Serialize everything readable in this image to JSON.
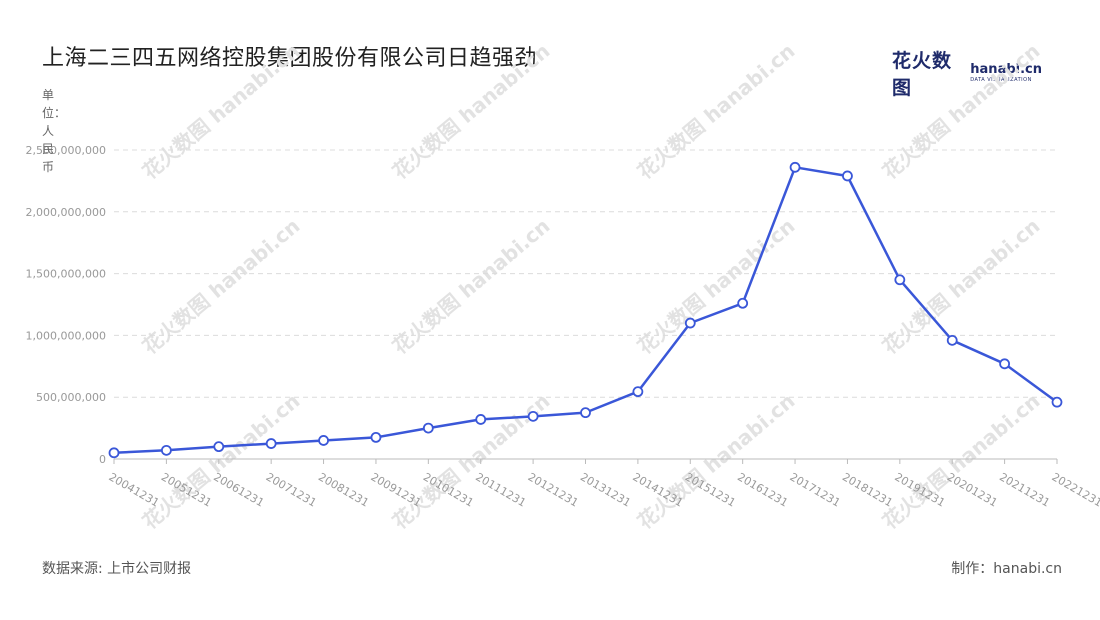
{
  "title": "上海二三四五网络控股集团股份有限公司日趋强劲",
  "logo": {
    "cn": "花火数图",
    "en": "hanabi.cn",
    "tagline": "DATA VISUALIZATION"
  },
  "footer": {
    "source": "数据来源: 上市公司财报",
    "credit": "制作：hanabi.cn"
  },
  "chart_data": {
    "type": "line",
    "title": "上海二三四五网络控股集团股份有限公司日趋强劲",
    "ylabel": "单位：人民币",
    "xlabel": "",
    "ylim": [
      0,
      2500000000
    ],
    "yticks": [
      0,
      500000000,
      1000000000,
      1500000000,
      2000000000,
      2500000000
    ],
    "ytick_labels": [
      "0",
      "500,000,000",
      "1,000,000,000",
      "1,500,000,000",
      "2,000,000,000",
      "2,500,000,000"
    ],
    "grid": true,
    "legend": "none",
    "color": "#3a57d8",
    "categories": [
      "20041231",
      "20051231",
      "20061231",
      "20071231",
      "20081231",
      "20091231",
      "20101231",
      "20111231",
      "20121231",
      "20131231",
      "20141231",
      "20151231",
      "20161231",
      "20171231",
      "20181231",
      "20191231",
      "20201231",
      "20211231",
      "20221231"
    ],
    "values": [
      50000000,
      70000000,
      100000000,
      125000000,
      150000000,
      175000000,
      250000000,
      320000000,
      345000000,
      375000000,
      545000000,
      1100000000,
      1260000000,
      2360000000,
      2290000000,
      1450000000,
      960000000,
      770000000,
      460000000
    ]
  }
}
